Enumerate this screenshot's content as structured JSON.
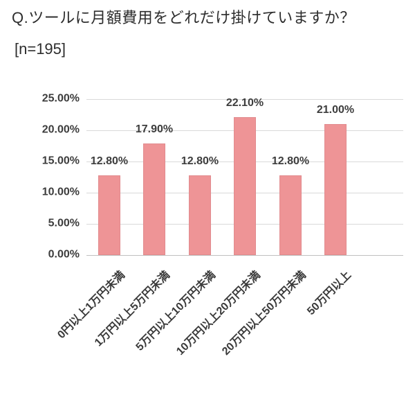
{
  "title": "Q.ツールに月額費用をどれだけ掛けていますか？",
  "sample_size": "[n=195]",
  "chart_data": {
    "type": "bar",
    "title": "Q.ツールに月額費用をどれだけ掛けていますか？",
    "subtitle": "[n=195]",
    "categories": [
      "0円以上1万円未満",
      "1万円以上5万円未満",
      "5万円以上10万円未満",
      "10万円以上20万円未満",
      "20万円以上50万円未満",
      "50万円以上"
    ],
    "values": [
      12.8,
      17.9,
      12.8,
      22.1,
      12.8,
      21.0
    ],
    "data_labels": [
      "12.80%",
      "17.90%",
      "12.80%",
      "22.10%",
      "12.80%",
      "21.00%"
    ],
    "y_ticks": [
      "25.00%",
      "20.00%",
      "15.00%",
      "10.00%",
      "5.00%",
      "0.00%"
    ],
    "ylim": [
      0,
      25
    ],
    "y_tick_step": 5,
    "grid": true,
    "legend": "none",
    "xlabel": "",
    "ylabel": "",
    "colors": {
      "bar_fill": "#ee9496",
      "bar_border": "#e18b8e",
      "gridline": "#d9d9d9",
      "axis_line": "#c0c0c0",
      "label_text": "#3d3d3d",
      "title_text": "#2d2d2d"
    }
  }
}
